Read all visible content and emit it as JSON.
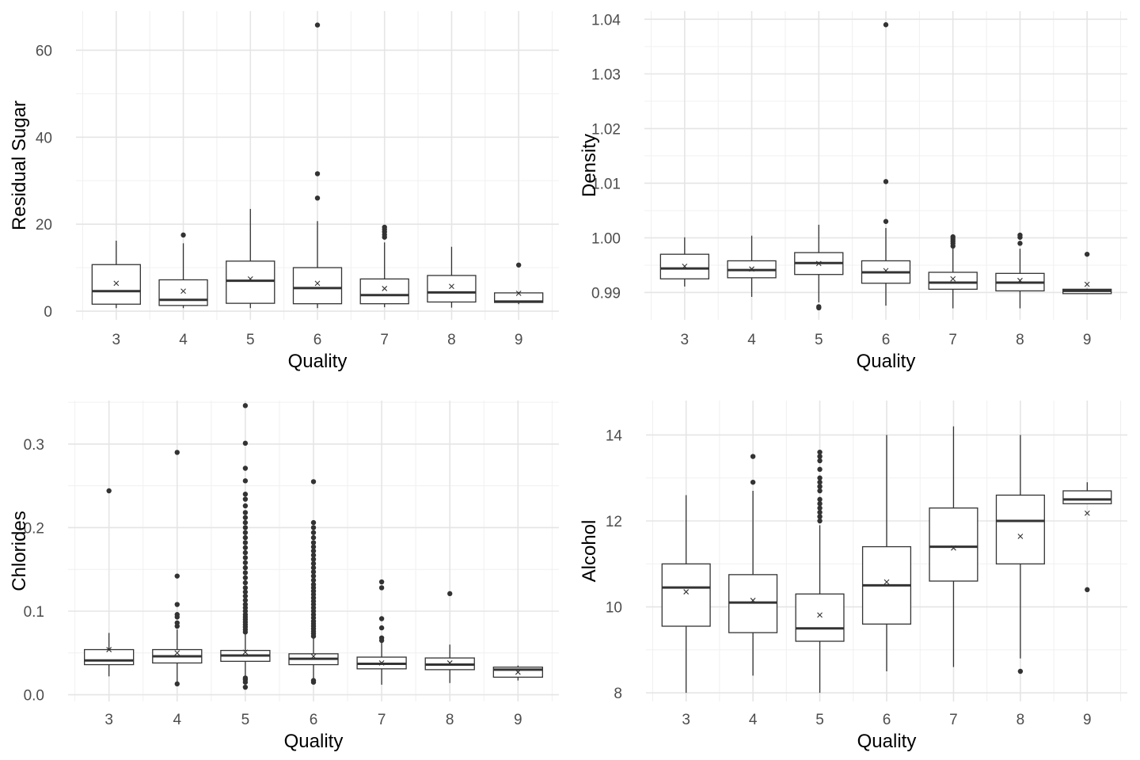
{
  "chart_data": [
    {
      "type": "boxplot",
      "xlabel": "Quality",
      "ylabel": "Residual Sugar",
      "categories": [
        "3",
        "4",
        "5",
        "6",
        "7",
        "8",
        "9"
      ],
      "ylim": [
        -2,
        69
      ],
      "yticks": [
        0,
        20,
        40,
        60
      ],
      "ytick_labels": [
        "0",
        "20",
        "40",
        "60"
      ],
      "grid": true,
      "boxes": [
        {
          "q1": 1.6,
          "median": 4.6,
          "q3": 10.7,
          "lo": 0.7,
          "hi": 16.2,
          "mean": 6.4,
          "outliers": []
        },
        {
          "q1": 1.3,
          "median": 2.6,
          "q3": 7.2,
          "lo": 0.7,
          "hi": 15.6,
          "mean": 4.6,
          "outliers": [
            17.5
          ]
        },
        {
          "q1": 1.8,
          "median": 7.0,
          "q3": 11.5,
          "lo": 0.7,
          "hi": 23.5,
          "mean": 7.4,
          "outliers": []
        },
        {
          "q1": 1.7,
          "median": 5.3,
          "q3": 10.0,
          "lo": 0.7,
          "hi": 20.7,
          "mean": 6.4,
          "outliers": [
            26.0,
            31.6,
            65.8
          ]
        },
        {
          "q1": 1.7,
          "median": 3.7,
          "q3": 7.4,
          "lo": 0.9,
          "hi": 15.8,
          "mean": 5.2,
          "outliers": [
            17.0,
            17.6,
            18.2,
            18.8,
            19.3
          ]
        },
        {
          "q1": 2.1,
          "median": 4.3,
          "q3": 8.2,
          "lo": 0.8,
          "hi": 14.8,
          "mean": 5.7,
          "outliers": []
        },
        {
          "q1": 2.0,
          "median": 2.2,
          "q3": 4.2,
          "lo": 1.6,
          "hi": 4.4,
          "mean": 4.1,
          "outliers": [
            10.6
          ]
        }
      ]
    },
    {
      "type": "boxplot",
      "xlabel": "Quality",
      "ylabel": "Density",
      "categories": [
        "3",
        "4",
        "5",
        "6",
        "7",
        "8",
        "9"
      ],
      "ylim": [
        0.985,
        1.0415
      ],
      "yticks": [
        0.99,
        1.0,
        1.01,
        1.02,
        1.03,
        1.04
      ],
      "ytick_labels": [
        "0.99",
        "1.00",
        "1.01",
        "1.02",
        "1.03",
        "1.04"
      ],
      "grid": true,
      "boxes": [
        {
          "q1": 0.9925,
          "median": 0.9944,
          "q3": 0.997,
          "lo": 0.9911,
          "hi": 1.0001,
          "mean": 0.9948,
          "outliers": []
        },
        {
          "q1": 0.9927,
          "median": 0.9941,
          "q3": 0.9958,
          "lo": 0.9892,
          "hi": 1.0004,
          "mean": 0.9943,
          "outliers": []
        },
        {
          "q1": 0.9933,
          "median": 0.9954,
          "q3": 0.9973,
          "lo": 0.9882,
          "hi": 1.0024,
          "mean": 0.9953,
          "outliers": [
            0.9874,
            0.9872
          ]
        },
        {
          "q1": 0.9917,
          "median": 0.9937,
          "q3": 0.9958,
          "lo": 0.9876,
          "hi": 1.0018,
          "mean": 0.994,
          "outliers": [
            1.003,
            1.0103,
            1.039
          ]
        },
        {
          "q1": 0.9906,
          "median": 0.9918,
          "q3": 0.9937,
          "lo": 0.9871,
          "hi": 0.9981,
          "mean": 0.9925,
          "outliers": [
            0.9985,
            0.999,
            0.9994,
            0.9998,
            1.0002
          ]
        },
        {
          "q1": 0.9903,
          "median": 0.9918,
          "q3": 0.9935,
          "lo": 0.9871,
          "hi": 0.998,
          "mean": 0.9922,
          "outliers": [
            0.999,
            1.0001,
            1.0005
          ]
        },
        {
          "q1": 0.9898,
          "median": 0.9903,
          "q3": 0.9906,
          "lo": 0.9897,
          "hi": 0.9907,
          "mean": 0.9915,
          "outliers": [
            0.997
          ]
        }
      ]
    },
    {
      "type": "boxplot",
      "xlabel": "Quality",
      "ylabel": "Chlorides",
      "categories": [
        "3",
        "4",
        "5",
        "6",
        "7",
        "8",
        "9"
      ],
      "ylim": [
        -0.008,
        0.352
      ],
      "yticks": [
        0.0,
        0.1,
        0.2,
        0.3
      ],
      "ytick_labels": [
        "0.0",
        "0.1",
        "0.2",
        "0.3"
      ],
      "grid": true,
      "boxes": [
        {
          "q1": 0.036,
          "median": 0.041,
          "q3": 0.054,
          "lo": 0.022,
          "hi": 0.074,
          "mean": 0.054,
          "outliers": [
            0.244
          ]
        },
        {
          "q1": 0.038,
          "median": 0.046,
          "q3": 0.054,
          "lo": 0.013,
          "hi": 0.078,
          "mean": 0.05,
          "outliers": [
            0.013,
            0.082,
            0.086,
            0.093,
            0.096,
            0.108,
            0.142,
            0.29
          ]
        },
        {
          "q1": 0.04,
          "median": 0.047,
          "q3": 0.053,
          "lo": 0.02,
          "hi": 0.072,
          "mean": 0.051,
          "outliers": [
            0.009,
            0.015,
            0.018,
            0.02,
            0.075,
            0.078,
            0.081,
            0.084,
            0.087,
            0.09,
            0.093,
            0.096,
            0.1,
            0.104,
            0.108,
            0.113,
            0.118,
            0.123,
            0.128,
            0.134,
            0.14,
            0.146,
            0.152,
            0.158,
            0.164,
            0.17,
            0.176,
            0.182,
            0.188,
            0.194,
            0.2,
            0.206,
            0.212,
            0.218,
            0.226,
            0.234,
            0.24,
            0.256,
            0.271,
            0.301,
            0.346
          ]
        },
        {
          "q1": 0.036,
          "median": 0.043,
          "q3": 0.049,
          "lo": 0.016,
          "hi": 0.068,
          "mean": 0.046,
          "outliers": [
            0.015,
            0.017,
            0.07,
            0.073,
            0.076,
            0.079,
            0.082,
            0.085,
            0.088,
            0.092,
            0.096,
            0.1,
            0.104,
            0.108,
            0.112,
            0.116,
            0.12,
            0.124,
            0.128,
            0.132,
            0.137,
            0.142,
            0.147,
            0.152,
            0.157,
            0.162,
            0.167,
            0.172,
            0.177,
            0.182,
            0.188,
            0.194,
            0.2,
            0.206,
            0.255
          ]
        },
        {
          "q1": 0.031,
          "median": 0.037,
          "q3": 0.045,
          "lo": 0.012,
          "hi": 0.064,
          "mean": 0.038,
          "outliers": [
            0.065,
            0.068,
            0.08,
            0.091,
            0.128,
            0.135
          ]
        },
        {
          "q1": 0.03,
          "median": 0.036,
          "q3": 0.044,
          "lo": 0.014,
          "hi": 0.06,
          "mean": 0.038,
          "outliers": [
            0.121
          ]
        },
        {
          "q1": 0.021,
          "median": 0.03,
          "q3": 0.033,
          "lo": 0.017,
          "hi": 0.035,
          "mean": 0.027,
          "outliers": []
        }
      ]
    },
    {
      "type": "boxplot",
      "xlabel": "Quality",
      "ylabel": "Alcohol",
      "categories": [
        "3",
        "4",
        "5",
        "6",
        "7",
        "8",
        "9"
      ],
      "ylim": [
        7.8,
        14.8
      ],
      "yticks": [
        8,
        10,
        12,
        14
      ],
      "ytick_labels": [
        "8",
        "10",
        "12",
        "14"
      ],
      "grid": true,
      "boxes": [
        {
          "q1": 9.55,
          "median": 10.45,
          "q3": 11.0,
          "lo": 8.0,
          "hi": 12.6,
          "mean": 10.35,
          "outliers": []
        },
        {
          "q1": 9.4,
          "median": 10.1,
          "q3": 10.75,
          "lo": 8.4,
          "hi": 12.7,
          "mean": 10.15,
          "outliers": [
            12.9,
            13.5
          ]
        },
        {
          "q1": 9.2,
          "median": 9.5,
          "q3": 10.3,
          "lo": 8.0,
          "hi": 11.9,
          "mean": 9.81,
          "outliers": [
            12.0,
            12.1,
            12.2,
            12.3,
            12.4,
            12.5,
            12.7,
            12.8,
            12.9,
            13.0,
            13.2,
            13.4,
            13.5,
            13.6
          ]
        },
        {
          "q1": 9.6,
          "median": 10.5,
          "q3": 11.4,
          "lo": 8.5,
          "hi": 14.0,
          "mean": 10.58,
          "outliers": []
        },
        {
          "q1": 10.6,
          "median": 11.4,
          "q3": 12.3,
          "lo": 8.6,
          "hi": 14.2,
          "mean": 11.37,
          "outliers": []
        },
        {
          "q1": 11.0,
          "median": 12.0,
          "q3": 12.6,
          "lo": 8.8,
          "hi": 14.0,
          "mean": 11.64,
          "outliers": [
            8.5
          ]
        },
        {
          "q1": 12.4,
          "median": 12.5,
          "q3": 12.7,
          "lo": 12.4,
          "hi": 12.9,
          "mean": 12.18,
          "outliers": [
            10.4
          ]
        }
      ]
    }
  ]
}
